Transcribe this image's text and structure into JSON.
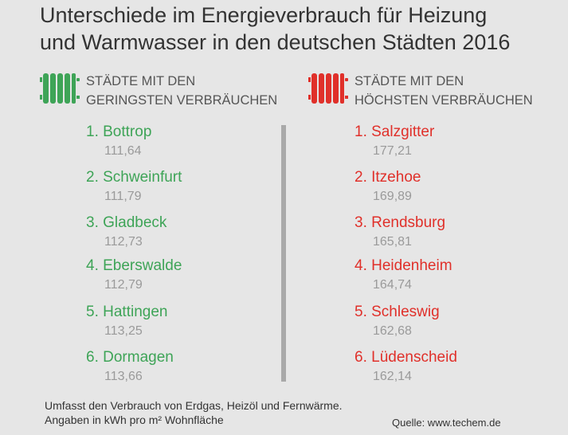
{
  "title": {
    "line1": "Unterschiede im Energieverbrauch für Heizung",
    "line2": "und Warmwasser in den deutschen Städten 2016"
  },
  "colors": {
    "low": "#3ea457",
    "high": "#e0302a",
    "value": "#9a9a9a"
  },
  "icons": {
    "low": "radiator-icon-green",
    "high": "radiator-icon-red"
  },
  "low": {
    "heading_line1": "STÄDTE MIT DEN",
    "heading_line2": "GERINGSTEN VERBRÄUCHEN",
    "items": [
      {
        "rank_name": "1. Bottrop",
        "value": "111,64"
      },
      {
        "rank_name": "2. Schweinfurt",
        "value": "111,79"
      },
      {
        "rank_name": "3. Gladbeck",
        "value": "112,73"
      },
      {
        "rank_name": "4. Eberswalde",
        "value": "112,79"
      },
      {
        "rank_name": "5. Hattingen",
        "value": "113,25"
      },
      {
        "rank_name": "6. Dormagen",
        "value": "113,66"
      }
    ]
  },
  "high": {
    "heading_line1": "STÄDTE MIT DEN",
    "heading_line2": "HÖCHSTEN VERBRÄUCHEN",
    "items": [
      {
        "rank_name": "1. Salzgitter",
        "value": "177,21"
      },
      {
        "rank_name": "2. Itzehoe",
        "value": "169,89"
      },
      {
        "rank_name": "3. Rendsburg",
        "value": "165,81"
      },
      {
        "rank_name": "4. Heidenheim",
        "value": "164,74"
      },
      {
        "rank_name": "5. Schleswig",
        "value": "162,68"
      },
      {
        "rank_name": "6. Lüdenscheid",
        "value": "162,14"
      }
    ]
  },
  "footnote": {
    "line1": "Umfasst den Verbrauch von Erdgas, Heizöl und Fernwärme.",
    "line2": "Angaben in kWh pro m² Wohnfläche"
  },
  "source": "Quelle: www.techem.de",
  "chart_data": {
    "type": "table",
    "title": "Unterschiede im Energieverbrauch für Heizung und Warmwasser in den deutschen Städten 2016",
    "unit": "kWh pro m² Wohnfläche",
    "groups": [
      {
        "name": "STÄDTE MIT DEN GERINGSTEN VERBRÄUCHEN",
        "categories": [
          "Bottrop",
          "Schweinfurt",
          "Gladbeck",
          "Eberswalde",
          "Hattingen",
          "Dormagen"
        ],
        "values": [
          111.64,
          111.79,
          112.73,
          112.79,
          113.25,
          113.66
        ]
      },
      {
        "name": "STÄDTE MIT DEN HÖCHSTEN VERBRÄUCHEN",
        "categories": [
          "Salzgitter",
          "Itzehoe",
          "Rendsburg",
          "Heidenheim",
          "Schleswig",
          "Lüdenscheid"
        ],
        "values": [
          177.21,
          169.89,
          165.81,
          164.74,
          162.68,
          162.14
        ]
      }
    ]
  }
}
